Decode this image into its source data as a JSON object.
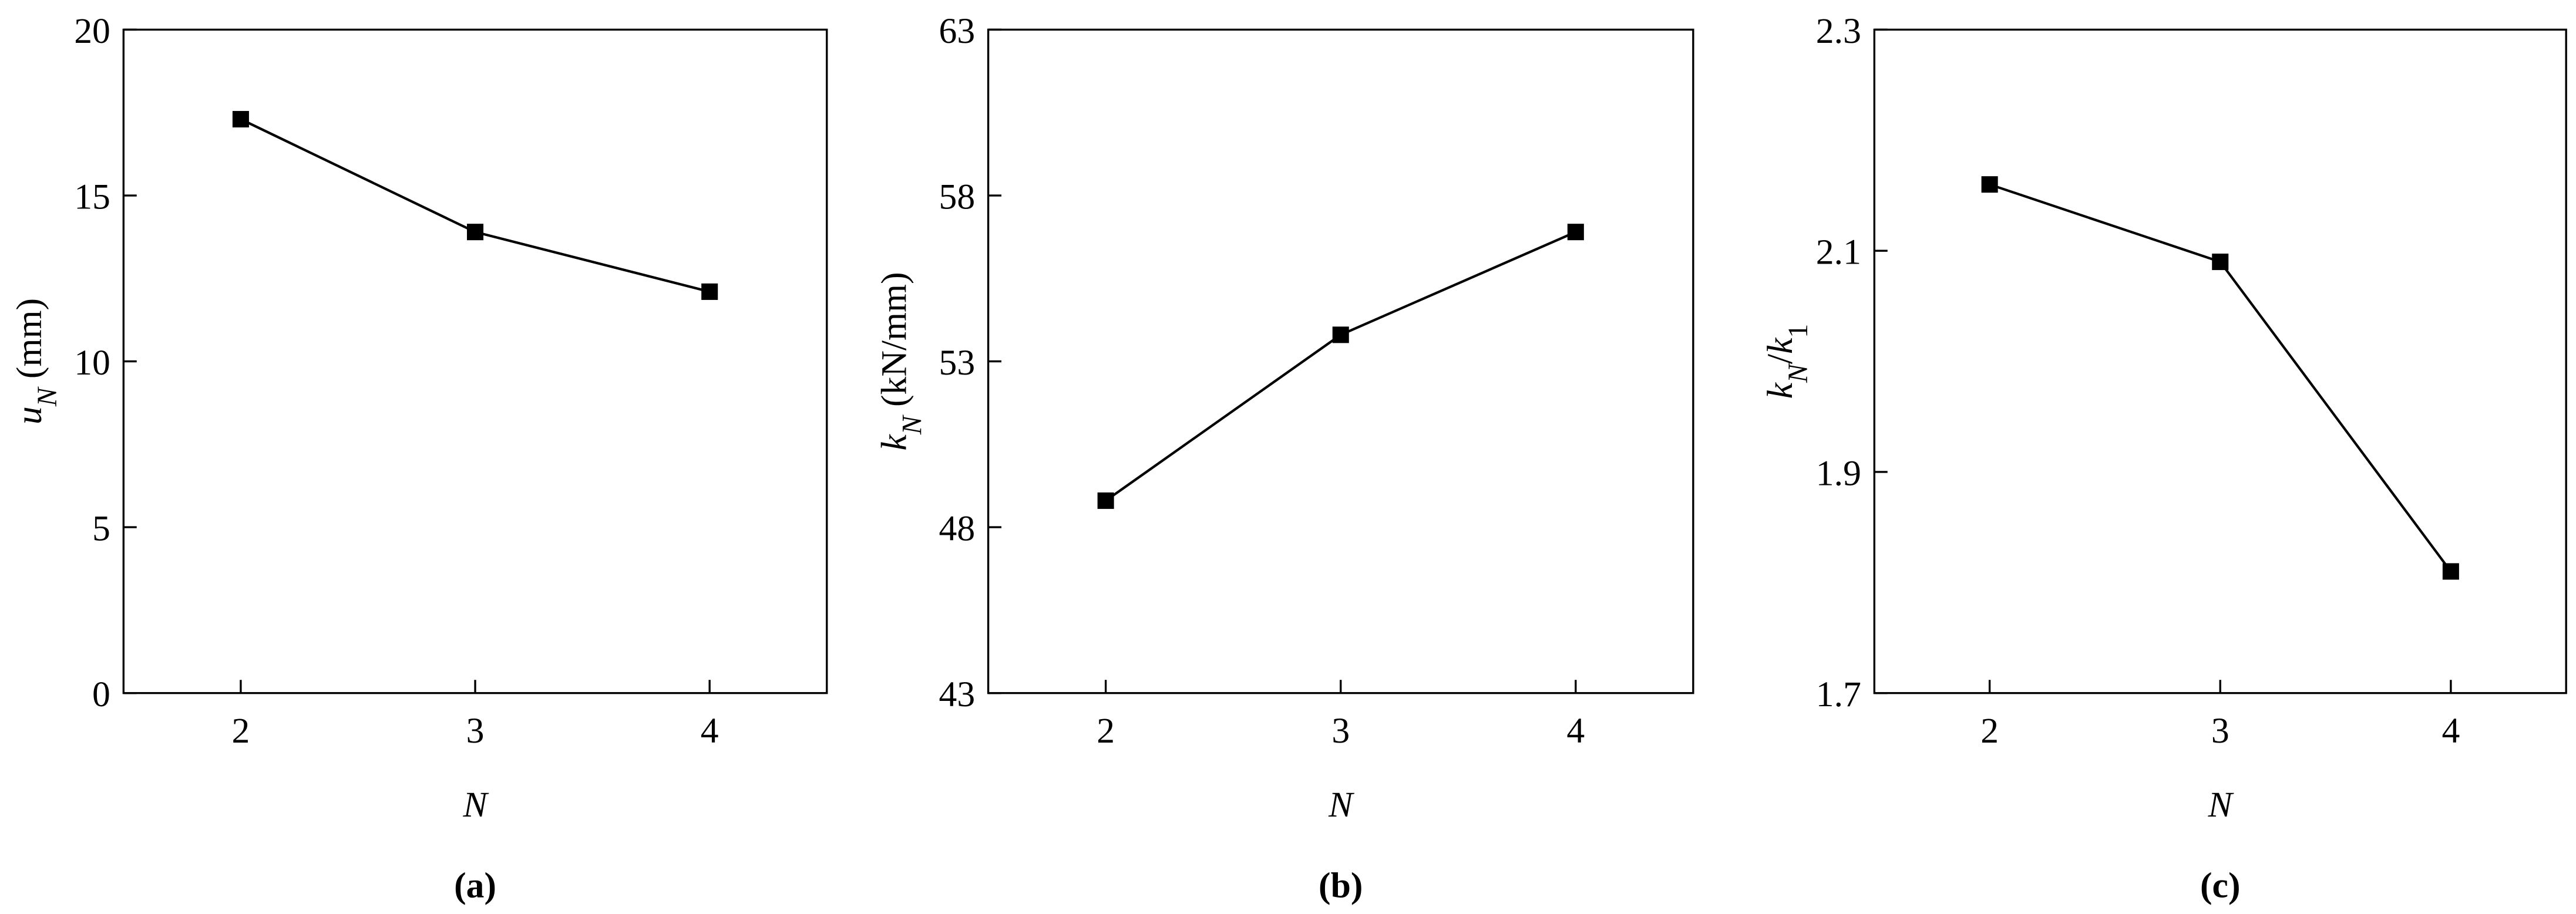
{
  "chart_data": [
    {
      "type": "line",
      "caption": "(a)",
      "xlabel": "N",
      "ylabel_parts": [
        {
          "text": "u",
          "italic": true
        },
        {
          "text": "N",
          "italic": true,
          "sub": true
        },
        {
          "text": " (mm)"
        }
      ],
      "x": [
        2,
        3,
        4
      ],
      "values": [
        17.3,
        13.9,
        12.1
      ],
      "color": "#000000",
      "xlim": [
        1.5,
        4.5
      ],
      "xticks": [
        2,
        3,
        4
      ],
      "ylim": [
        0,
        20
      ],
      "yticks": [
        0,
        5,
        10,
        15,
        20
      ]
    },
    {
      "type": "line",
      "caption": "(b)",
      "xlabel": "N",
      "ylabel_parts": [
        {
          "text": "k",
          "italic": true
        },
        {
          "text": "N",
          "italic": true,
          "sub": true
        },
        {
          "text": " (kN/mm)"
        }
      ],
      "x": [
        2,
        3,
        4
      ],
      "values": [
        48.8,
        53.8,
        56.9
      ],
      "color": "#000000",
      "xlim": [
        1.5,
        4.5
      ],
      "xticks": [
        2,
        3,
        4
      ],
      "ylim": [
        43,
        63
      ],
      "yticks": [
        43,
        48,
        53,
        58,
        63
      ]
    },
    {
      "type": "line",
      "caption": "(c)",
      "xlabel": "N",
      "ylabel_parts": [
        {
          "text": "k",
          "italic": true
        },
        {
          "text": "N",
          "italic": true,
          "sub": true
        },
        {
          "text": "/"
        },
        {
          "text": "k",
          "italic": true
        },
        {
          "text": "1",
          "sub": true
        }
      ],
      "x": [
        2,
        3,
        4
      ],
      "values": [
        2.16,
        2.09,
        1.81
      ],
      "color": "#000000",
      "xlim": [
        1.5,
        4.5
      ],
      "xticks": [
        2,
        3,
        4
      ],
      "ylim": [
        1.7,
        2.3
      ],
      "yticks": [
        1.7,
        1.9,
        2.1,
        2.3
      ]
    }
  ]
}
